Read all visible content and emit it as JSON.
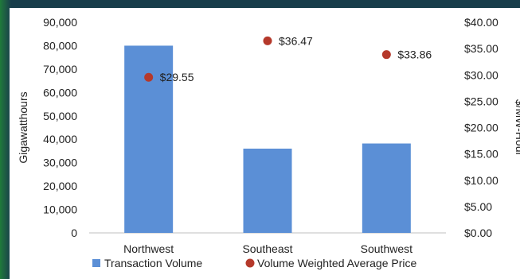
{
  "chart_data": {
    "type": "bar",
    "categories": [
      "Northwest",
      "Southeast",
      "Southwest"
    ],
    "series": [
      {
        "name": "Transaction Volume",
        "type": "bar",
        "axis": "left",
        "values": [
          80000,
          36000,
          38200
        ],
        "color": "#5b8fd6"
      },
      {
        "name": "Volume Weighted Average Price",
        "type": "scatter",
        "axis": "right",
        "values": [
          29.55,
          36.47,
          33.86
        ],
        "labels": [
          "$29.55",
          "$36.47",
          "$33.86"
        ],
        "color": "#b5392b"
      }
    ],
    "ylabel": "Gigawatthours",
    "y2label": "$/MW-Hour",
    "ylim": [
      0,
      90000
    ],
    "y2lim": [
      0,
      40
    ],
    "yticks": [
      "0",
      "10,000",
      "20,000",
      "30,000",
      "40,000",
      "50,000",
      "60,000",
      "70,000",
      "80,000",
      "90,000"
    ],
    "y2ticks": [
      "$0.00",
      "$5.00",
      "$10.00",
      "$15.00",
      "$20.00",
      "$25.00",
      "$30.00",
      "$35.00",
      "$40.00"
    ],
    "legend_position": "bottom",
    "grid": false
  }
}
